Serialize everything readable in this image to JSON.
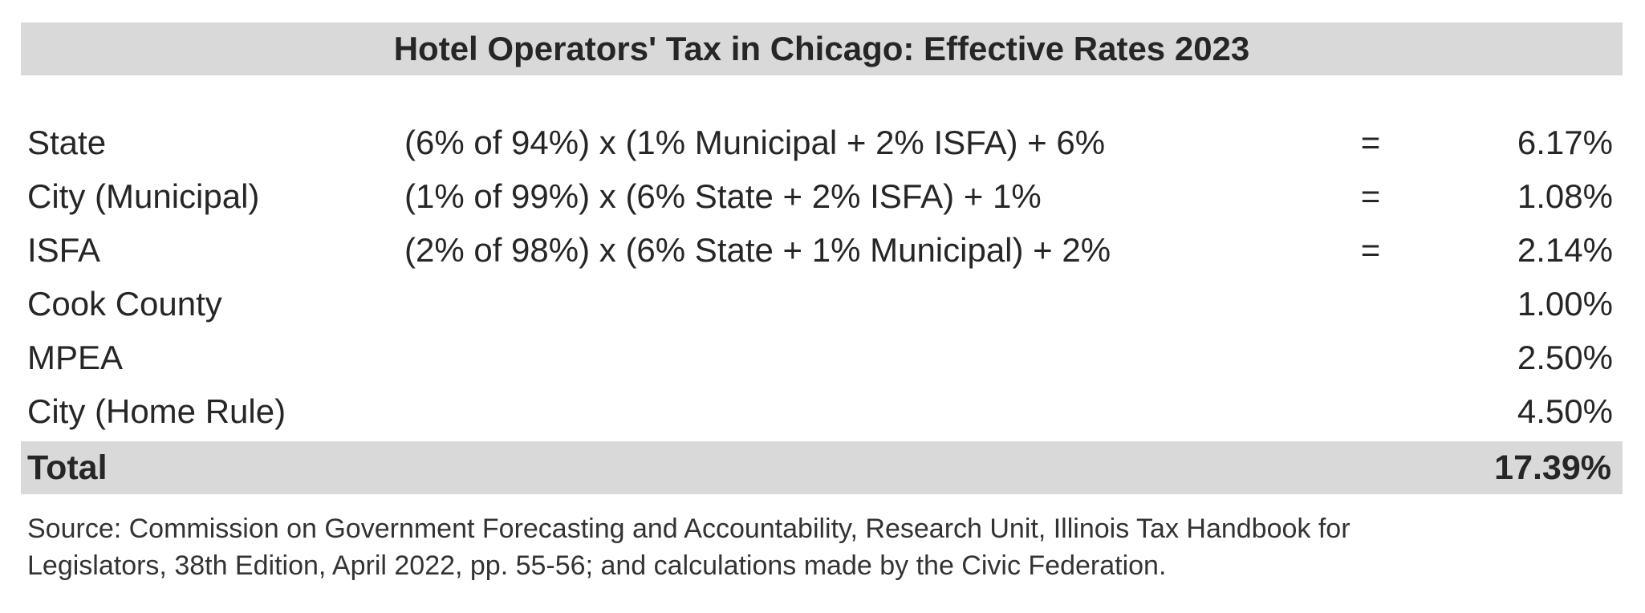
{
  "title": "Hotel Operators' Tax in Chicago: Effective Rates 2023",
  "rows": [
    {
      "label": "State",
      "formula": "(6% of 94%) x (1% Municipal + 2% ISFA) + 6%",
      "eq": "=",
      "rate": "6.17%"
    },
    {
      "label": "City (Municipal)",
      "formula": "(1% of 99%) x (6% State + 2% ISFA) + 1%",
      "eq": "=",
      "rate": "1.08%"
    },
    {
      "label": "ISFA",
      "formula": "(2% of 98%) x (6% State + 1% Municipal) + 2%",
      "eq": "=",
      "rate": "2.14%"
    },
    {
      "label": "Cook County",
      "formula": "",
      "eq": "",
      "rate": "1.00%"
    },
    {
      "label": "MPEA",
      "formula": "",
      "eq": "",
      "rate": "2.50%"
    },
    {
      "label": "City (Home Rule)",
      "formula": "",
      "eq": "",
      "rate": "4.50%"
    }
  ],
  "total": {
    "label": "Total",
    "rate": "17.39%"
  },
  "source_line1": "Source: Commission on Government Forecasting and Accountability, Research Unit, Illinois Tax Handbook for",
  "source_line2": "Legislators, 38th Edition, April 2022, pp. 55-56; and calculations made by the Civic Federation."
}
